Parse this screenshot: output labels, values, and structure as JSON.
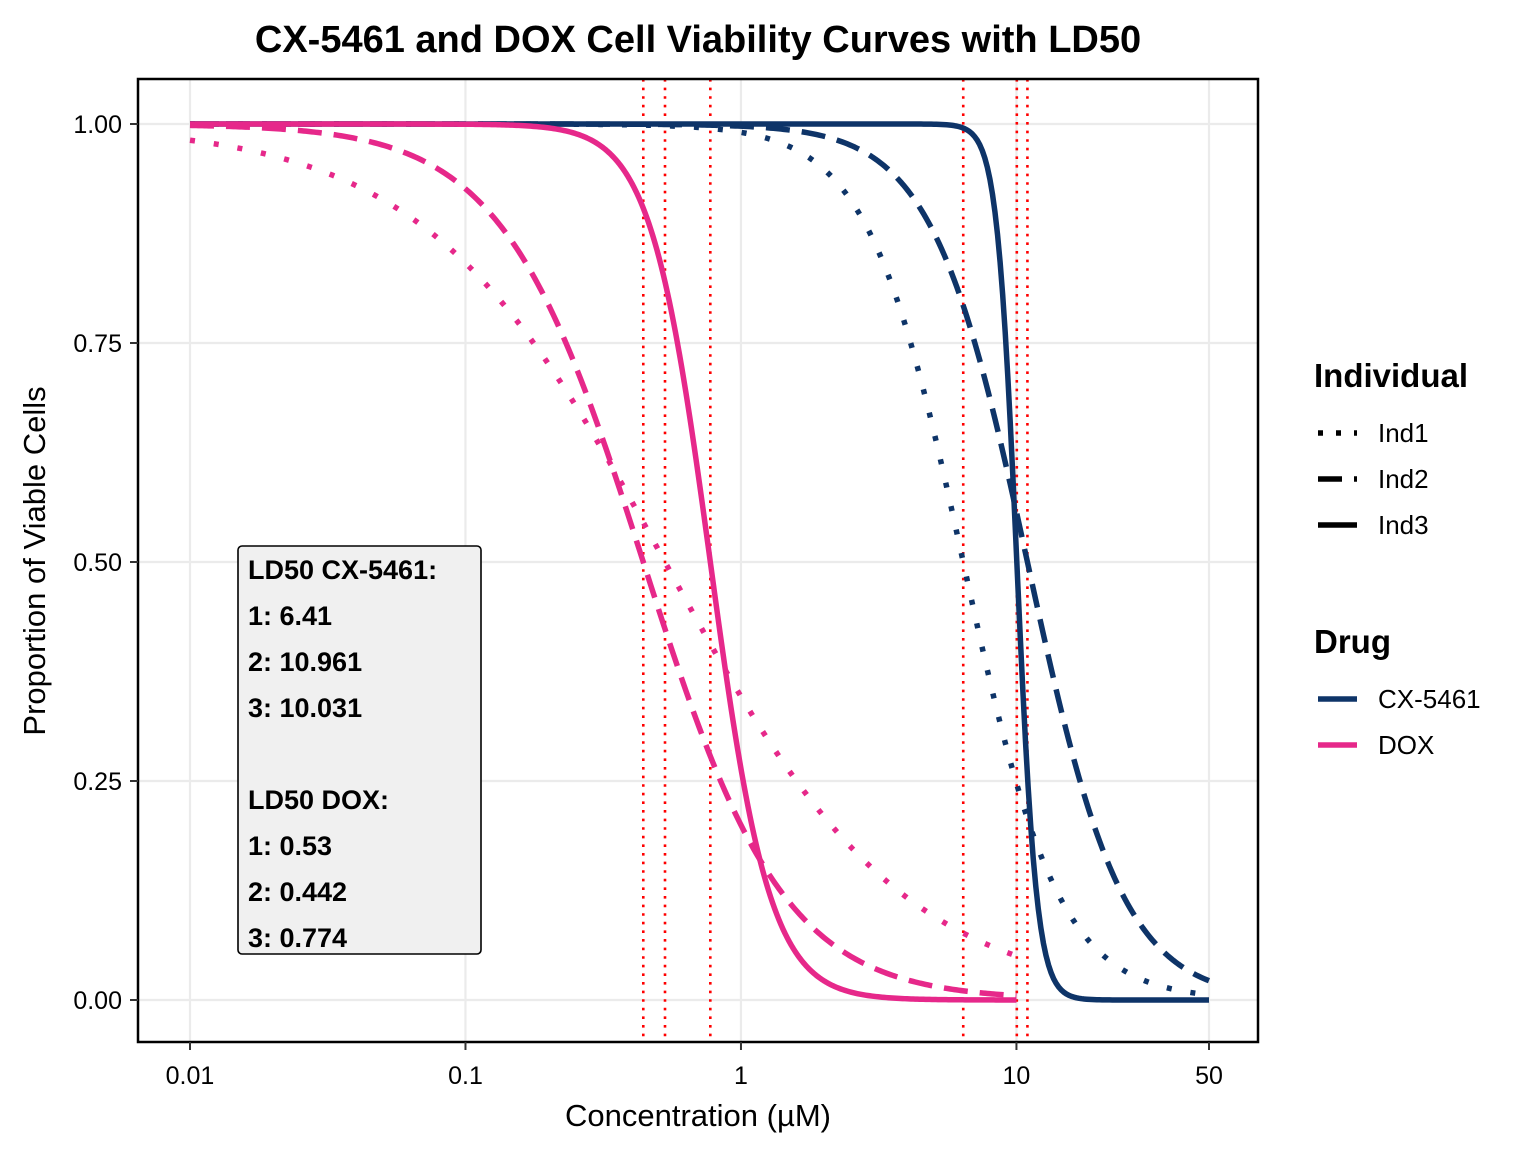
{
  "chart_data": {
    "type": "line",
    "title": "CX-5461 and DOX Cell Viability Curves with LD50",
    "xlabel": "Concentration (µM)",
    "ylabel": "Proportion of Viable Cells",
    "x_scale": "log10",
    "xlim": [
      0.01,
      50
    ],
    "ylim": [
      0,
      1
    ],
    "x_ticks": [
      0.01,
      0.1,
      1,
      10,
      50
    ],
    "x_tick_labels": [
      "0.01",
      "0.1",
      "1",
      "10",
      "50"
    ],
    "y_ticks": [
      0,
      0.25,
      0.5,
      0.75,
      1
    ],
    "y_tick_labels": [
      "0.00",
      "0.25",
      "0.50",
      "0.75",
      "1.00"
    ],
    "grid": true,
    "legend_position": "right",
    "legends": [
      {
        "title": "Individual",
        "entries": [
          {
            "label": "Ind1",
            "linetype": "dotted"
          },
          {
            "label": "Ind2",
            "linetype": "dashed"
          },
          {
            "label": "Ind3",
            "linetype": "solid"
          }
        ]
      },
      {
        "title": "Drug",
        "entries": [
          {
            "label": "CX-5461",
            "color": "#0e3468"
          },
          {
            "label": "DOX",
            "color": "#e6288a"
          }
        ]
      }
    ],
    "series": [
      {
        "drug": "CX-5461",
        "individual": "Ind1",
        "color": "#0e3468",
        "linetype": "dotted",
        "x_range": [
          0.01,
          50
        ],
        "ld50": 6.41,
        "hill": 2.5
      },
      {
        "drug": "CX-5461",
        "individual": "Ind2",
        "color": "#0e3468",
        "linetype": "dashed",
        "x_range": [
          0.01,
          50
        ],
        "ld50": 10.961,
        "hill": 2.5
      },
      {
        "drug": "CX-5461",
        "individual": "Ind3",
        "color": "#0e3468",
        "linetype": "solid",
        "x_range": [
          0.01,
          50
        ],
        "ld50": 10.031,
        "hill": 12
      },
      {
        "drug": "DOX",
        "individual": "Ind1",
        "color": "#e6288a",
        "linetype": "dotted",
        "x_range": [
          0.01,
          10
        ],
        "ld50": 0.53,
        "hill": 1
      },
      {
        "drug": "DOX",
        "individual": "Ind2",
        "color": "#e6288a",
        "linetype": "dashed",
        "x_range": [
          0.01,
          10
        ],
        "ld50": 0.442,
        "hill": 1.7
      },
      {
        "drug": "DOX",
        "individual": "Ind3",
        "color": "#e6288a",
        "linetype": "solid",
        "x_range": [
          0.01,
          10
        ],
        "ld50": 0.774,
        "hill": 4
      }
    ],
    "ld50_vlines": [
      0.442,
      0.53,
      0.774,
      6.41,
      10.031,
      10.961
    ],
    "vline_color": "#ff0000",
    "annotation_lines": [
      "LD50 CX-5461:",
      "1: 6.41",
      "2: 10.961",
      "3: 10.031",
      "",
      "LD50 DOX:",
      "1: 0.53",
      "2: 0.442",
      "3: 0.774"
    ]
  }
}
